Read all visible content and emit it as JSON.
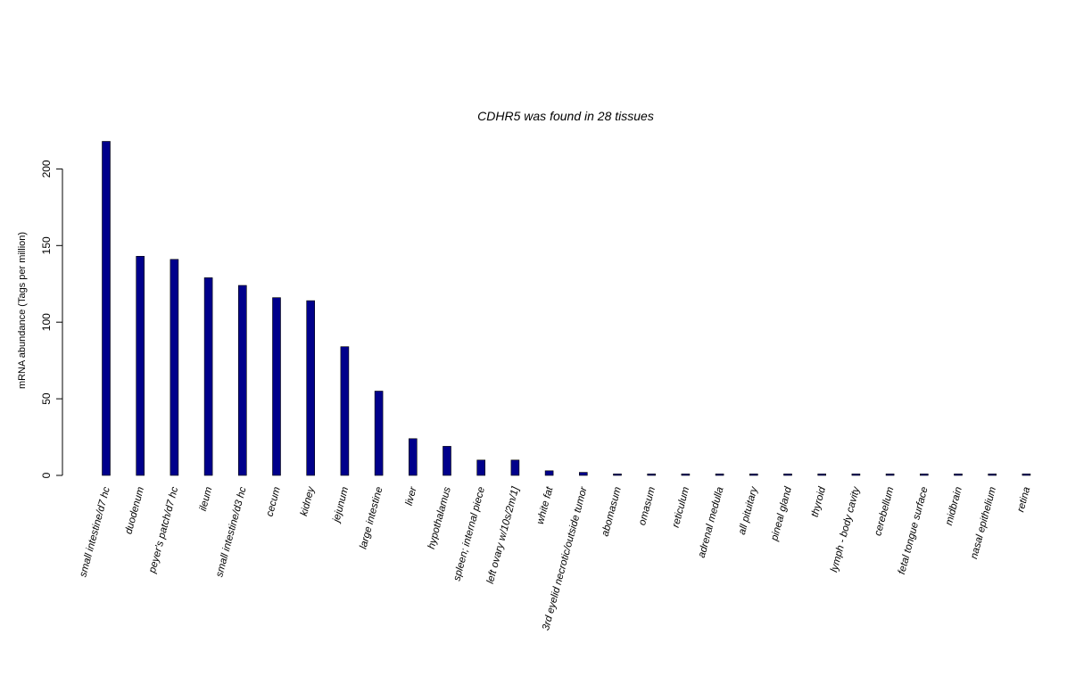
{
  "chart_data": {
    "type": "bar",
    "title": "CDHR5  was found in  28  tissues",
    "ylabel": "mRNA abundance (Tags per million)",
    "xlabel": "",
    "ylim": [
      0,
      220
    ],
    "yticks": [
      0,
      50,
      100,
      150,
      200
    ],
    "grid": false,
    "legend": "none",
    "bar_color": "#00008B",
    "categories": [
      "small intestine/d7 hc",
      "duodenum",
      "peyer's patch/d7 hc",
      "ileum",
      "small intestine/d3 hc",
      "cecum",
      "kidney",
      "jejunum",
      "large intestine",
      "liver",
      "hypothalamus",
      "spleen; internal piece",
      "left ovary w/10s/2m/1]",
      "white fat",
      "3rd eyelid necrotic/outside tumor",
      "abomasum",
      "omasum",
      "reticulum",
      "adrenal medulla",
      "all pituitary",
      "pineal gland",
      "thyroid",
      "lymph - body cavity",
      "cerebellum",
      "fetal tongue surface",
      "midbrain",
      "nasal epithelium",
      "retina"
    ],
    "values": [
      218,
      143,
      141,
      129,
      124,
      116,
      114,
      84,
      55,
      24,
      19,
      10,
      10,
      3,
      2,
      1,
      1,
      1,
      1,
      1,
      1,
      1,
      1,
      1,
      1,
      1,
      1,
      1
    ]
  }
}
